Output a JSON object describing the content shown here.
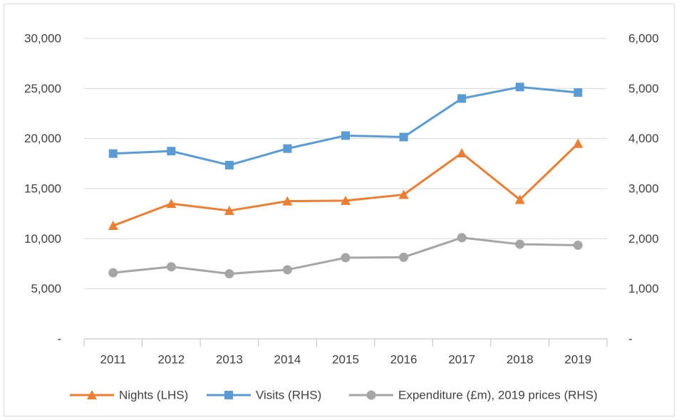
{
  "chart_data": {
    "type": "line",
    "categories": [
      "2011",
      "2012",
      "2013",
      "2014",
      "2015",
      "2016",
      "2017",
      "2018",
      "2019"
    ],
    "series": [
      {
        "name": "Nights (LHS)",
        "color": "#ed7d31",
        "marker": "triangle",
        "axis": "y",
        "values": [
          11300,
          13500,
          12800,
          13750,
          13800,
          14400,
          18550,
          13900,
          19500
        ]
      },
      {
        "name": "Visits (RHS)",
        "color": "#5b9bd5",
        "marker": "square",
        "axis": "y2",
        "values": [
          3700,
          3750,
          3470,
          3800,
          4060,
          4030,
          4800,
          5030,
          4920
        ]
      },
      {
        "name": "Expenditure (£m), 2019 prices (RHS)",
        "color": "#a5a5a5",
        "marker": "circle",
        "axis": "y2",
        "values": [
          1320,
          1440,
          1300,
          1380,
          1620,
          1630,
          2020,
          1890,
          1870
        ]
      }
    ],
    "ylim": [
      0,
      30000
    ],
    "yticks": [
      {
        "value": 0,
        "label": "-"
      },
      {
        "value": 5000,
        "label": "5,000"
      },
      {
        "value": 10000,
        "label": "10,000"
      },
      {
        "value": 15000,
        "label": "15,000"
      },
      {
        "value": 20000,
        "label": "20,000"
      },
      {
        "value": 25000,
        "label": "25,000"
      },
      {
        "value": 30000,
        "label": "30,000"
      }
    ],
    "y2lim": [
      0,
      6000
    ],
    "y2ticks": [
      {
        "value": 0,
        "label": "-"
      },
      {
        "value": 1000,
        "label": "1,000"
      },
      {
        "value": 2000,
        "label": "2,000"
      },
      {
        "value": 3000,
        "label": "3,000"
      },
      {
        "value": 4000,
        "label": "4,000"
      },
      {
        "value": 5000,
        "label": "5,000"
      },
      {
        "value": 6000,
        "label": "6,000"
      }
    ],
    "grid": true,
    "legend": "bottom"
  }
}
